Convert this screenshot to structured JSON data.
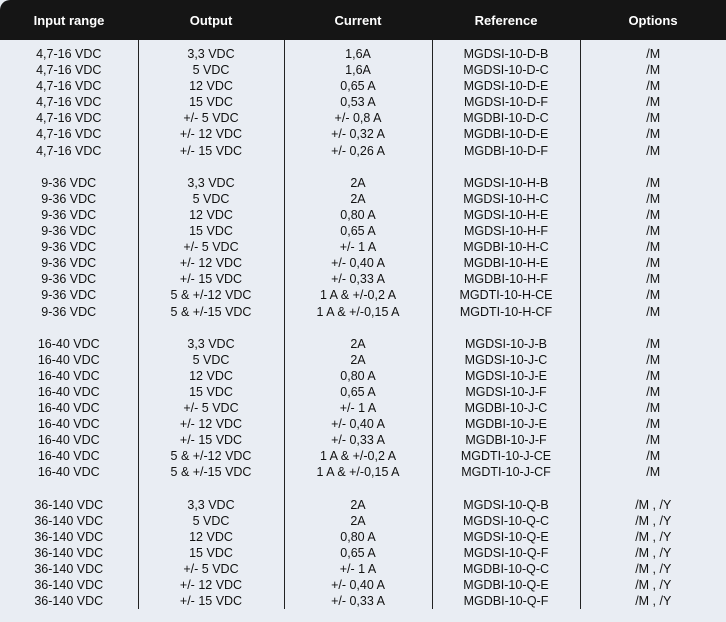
{
  "table": {
    "header": [
      "Input range",
      "Output",
      "Current",
      "Reference",
      "Options"
    ],
    "groups": [
      [
        [
          "4,7-16 VDC",
          "3,3 VDC",
          "1,6A",
          "MGDSI-10-D-B",
          "/M"
        ],
        [
          "4,7-16 VDC",
          "5 VDC",
          "1,6A",
          "MGDSI-10-D-C",
          "/M"
        ],
        [
          "4,7-16 VDC",
          "12 VDC",
          "0,65 A",
          "MGDSI-10-D-E",
          "/M"
        ],
        [
          "4,7-16 VDC",
          "15 VDC",
          "0,53 A",
          "MGDSI-10-D-F",
          "/M"
        ],
        [
          "4,7-16 VDC",
          "+/- 5 VDC",
          "+/- 0,8 A",
          "MGDBI-10-D-C",
          "/M"
        ],
        [
          "4,7-16 VDC",
          "+/- 12 VDC",
          "+/- 0,32 A",
          "MGDBI-10-D-E",
          "/M"
        ],
        [
          "4,7-16 VDC",
          "+/- 15 VDC",
          "+/- 0,26 A",
          "MGDBI-10-D-F",
          "/M"
        ]
      ],
      [
        [
          "9-36 VDC",
          "3,3 VDC",
          "2A",
          "MGDSI-10-H-B",
          "/M"
        ],
        [
          "9-36 VDC",
          "5 VDC",
          "2A",
          "MGDSI-10-H-C",
          "/M"
        ],
        [
          "9-36 VDC",
          "12 VDC",
          "0,80 A",
          "MGDSI-10-H-E",
          "/M"
        ],
        [
          "9-36 VDC",
          "15 VDC",
          "0,65 A",
          "MGDSI-10-H-F",
          "/M"
        ],
        [
          "9-36 VDC",
          "+/- 5 VDC",
          "+/- 1 A",
          "MGDBI-10-H-C",
          "/M"
        ],
        [
          "9-36 VDC",
          "+/- 12 VDC",
          "+/- 0,40 A",
          "MGDBI-10-H-E",
          "/M"
        ],
        [
          "9-36 VDC",
          "+/- 15 VDC",
          "+/- 0,33 A",
          "MGDBI-10-H-F",
          "/M"
        ],
        [
          "9-36 VDC",
          "5 & +/-12 VDC",
          "1 A & +/-0,2 A",
          "MGDTI-10-H-CE",
          "/M"
        ],
        [
          "9-36 VDC",
          "5 & +/-15 VDC",
          "1 A & +/-0,15 A",
          "MGDTI-10-H-CF",
          "/M"
        ]
      ],
      [
        [
          "16-40 VDC",
          "3,3 VDC",
          "2A",
          "MGDSI-10-J-B",
          "/M"
        ],
        [
          "16-40 VDC",
          "5 VDC",
          "2A",
          "MGDSI-10-J-C",
          "/M"
        ],
        [
          "16-40 VDC",
          "12 VDC",
          "0,80 A",
          "MGDSI-10-J-E",
          "/M"
        ],
        [
          "16-40 VDC",
          "15 VDC",
          "0,65 A",
          "MGDSI-10-J-F",
          "/M"
        ],
        [
          "16-40 VDC",
          "+/- 5 VDC",
          "+/- 1 A",
          "MGDBI-10-J-C",
          "/M"
        ],
        [
          "16-40 VDC",
          "+/- 12 VDC",
          "+/- 0,40 A",
          "MGDBI-10-J-E",
          "/M"
        ],
        [
          "16-40 VDC",
          "+/- 15 VDC",
          "+/- 0,33 A",
          "MGDBI-10-J-F",
          "/M"
        ],
        [
          "16-40 VDC",
          "5 & +/-12 VDC",
          "1 A & +/-0,2 A",
          "MGDTI-10-J-CE",
          "/M"
        ],
        [
          "16-40 VDC",
          "5 & +/-15 VDC",
          "1 A & +/-0,15 A",
          "MGDTI-10-J-CF",
          "/M"
        ]
      ],
      [
        [
          "36-140 VDC",
          "3,3 VDC",
          "2A",
          "MGDSI-10-Q-B",
          "/M , /Y"
        ],
        [
          "36-140 VDC",
          "5 VDC",
          "2A",
          "MGDSI-10-Q-C",
          "/M , /Y"
        ],
        [
          "36-140 VDC",
          "12 VDC",
          "0,80 A",
          "MGDSI-10-Q-E",
          "/M , /Y"
        ],
        [
          "36-140 VDC",
          "15 VDC",
          "0,65 A",
          "MGDSI-10-Q-F",
          "/M , /Y"
        ],
        [
          "36-140 VDC",
          "+/- 5 VDC",
          "+/- 1 A",
          "MGDBI-10-Q-C",
          "/M , /Y"
        ],
        [
          "36-140 VDC",
          "+/- 12 VDC",
          "+/- 0,40 A",
          "MGDBI-10-Q-E",
          "/M , /Y"
        ],
        [
          "36-140 VDC",
          "+/- 15 VDC",
          "+/- 0,33 A",
          "MGDBI-10-Q-F",
          "/M , /Y"
        ]
      ]
    ]
  }
}
